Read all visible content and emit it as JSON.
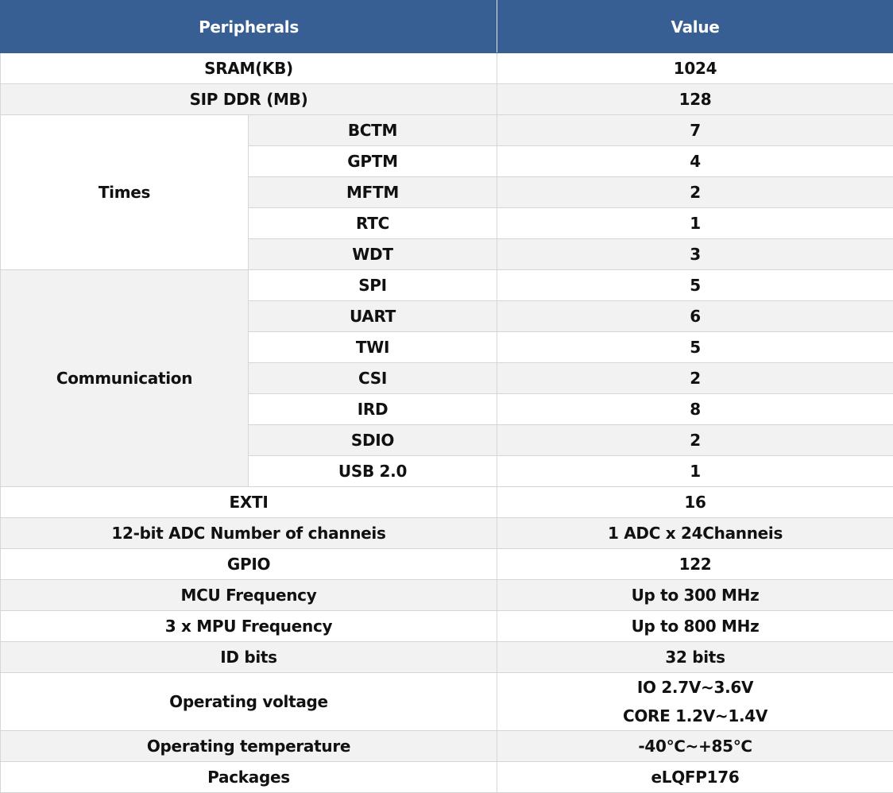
{
  "table": {
    "columns": [
      "Peripherals",
      "Value"
    ],
    "rows": [
      {
        "label": "SRAM(KB)",
        "value": 1024
      },
      {
        "label": "SIP DDR (MB)",
        "value": 128
      },
      {
        "group": "Times",
        "items": [
          {
            "label": "BCTM",
            "value": 7
          },
          {
            "label": "GPTM",
            "value": 4
          },
          {
            "label": "MFTM",
            "value": 2
          },
          {
            "label": "RTC",
            "value": 1
          },
          {
            "label": "WDT",
            "value": 3
          }
        ]
      },
      {
        "group": "Communication",
        "items": [
          {
            "label": "SPI",
            "value": 5
          },
          {
            "label": "UART",
            "value": 6
          },
          {
            "label": "TWI",
            "value": 5
          },
          {
            "label": "CSI",
            "value": 2
          },
          {
            "label": "IRD",
            "value": 8
          },
          {
            "label": "SDIO",
            "value": 2
          },
          {
            "label": "USB 2.0",
            "value": 1
          }
        ]
      },
      {
        "label": "EXTI",
        "value": 16
      },
      {
        "label": "12-bit ADC Number of channeis",
        "value": "1 ADC x 24Channeis"
      },
      {
        "label": "GPIO",
        "value": 122
      },
      {
        "label": "MCU Frequency",
        "value": "Up to 300 MHz"
      },
      {
        "label": "3 x MPU Frequency",
        "value": "Up to 800 MHz"
      },
      {
        "label": "ID bits",
        "value": "32 bits"
      },
      {
        "label": "Operating voltage",
        "values": [
          "IO 2.7V~3.6V",
          "CORE 1.2V~1.4V"
        ]
      },
      {
        "label": "Operating temperature",
        "value": "-40℃~+85℃"
      },
      {
        "label": "Packages",
        "value": "eLQFP176"
      }
    ]
  }
}
